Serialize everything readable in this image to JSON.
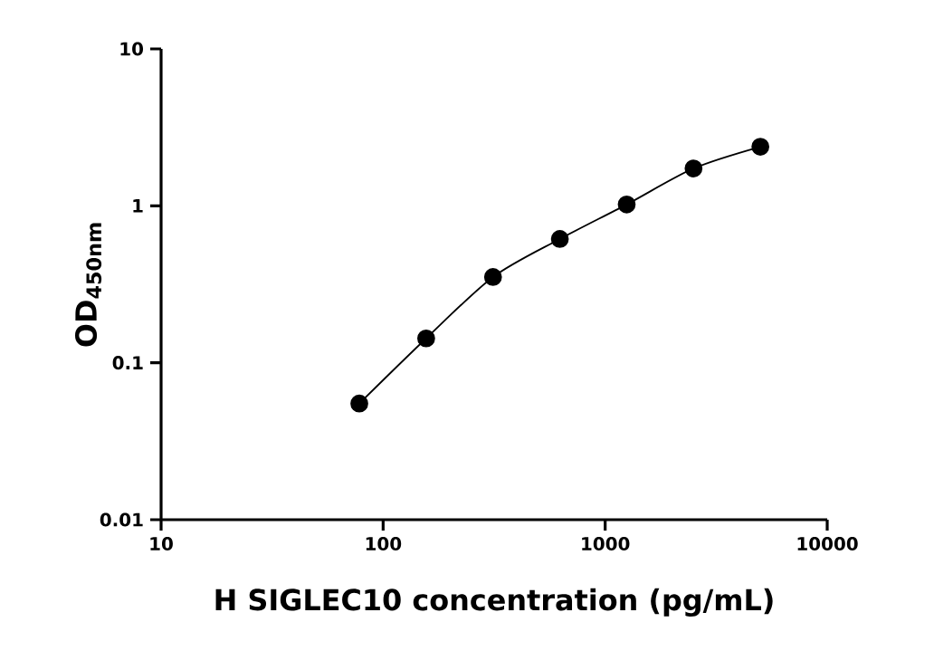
{
  "chart_data": {
    "type": "line",
    "xlabel": "H  SIGLEC10 concentration (pg/mL)",
    "ylabel": "OD$_{450nm}$",
    "log": "xy",
    "x": [
      78.125,
      156.25,
      312.5,
      625,
      1250,
      2500,
      5000
    ],
    "series": [
      {
        "color": "#000000",
        "values": [
          0.055,
          0.143,
          0.352,
          0.615,
          1.02,
          1.73,
          2.38
        ]
      }
    ],
    "xlim": [
      10,
      10000
    ],
    "ylim": [
      0.01,
      10
    ],
    "xticks": [
      10,
      100,
      1000,
      10000
    ],
    "yticks": [
      0.01,
      0.1,
      1,
      10
    ],
    "grid": false,
    "marker": "circle",
    "line_style": "solid"
  }
}
